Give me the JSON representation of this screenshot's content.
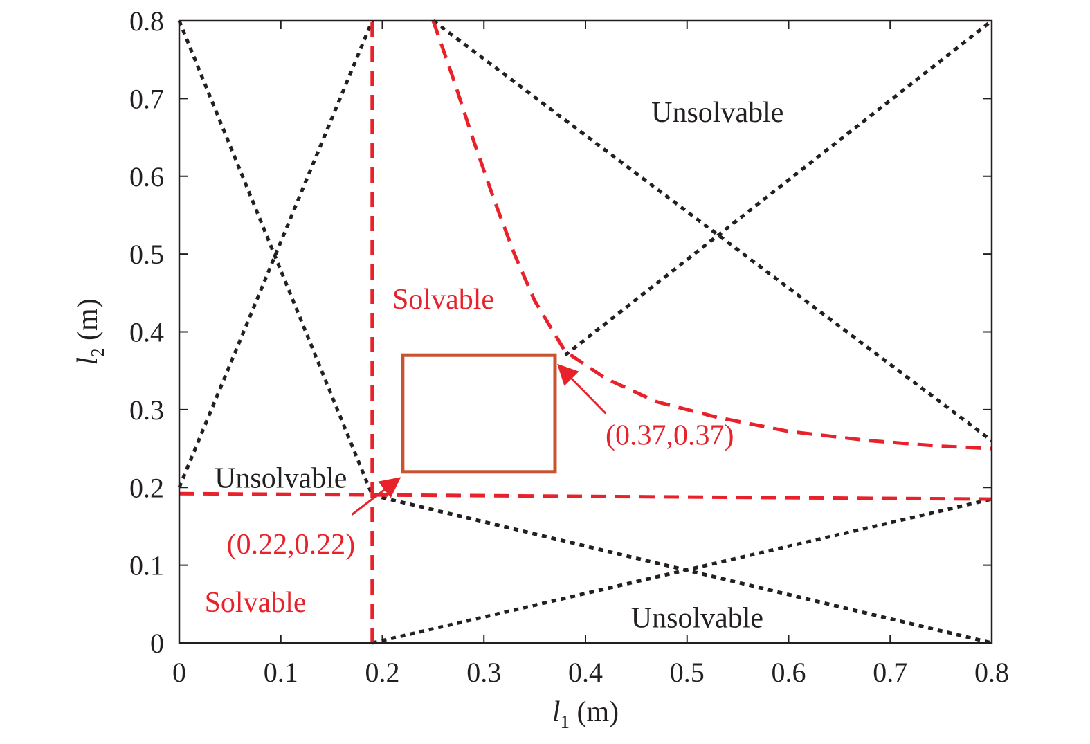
{
  "chart_data": {
    "type": "line",
    "title": "",
    "xlabel": {
      "var": "l",
      "sub": "1",
      "unit": " (m)"
    },
    "ylabel": {
      "var": "l",
      "sub": "2",
      "unit": " (m)"
    },
    "xlim": [
      0,
      0.8
    ],
    "ylim": [
      0,
      0.8
    ],
    "xticks": [
      0,
      0.1,
      0.2,
      0.3,
      0.4,
      0.5,
      0.6,
      0.7,
      0.8
    ],
    "yticks": [
      0,
      0.1,
      0.2,
      0.3,
      0.4,
      0.5,
      0.6,
      0.7,
      0.8
    ],
    "xtick_labels": [
      "0",
      "0.1",
      "0.2",
      "0.3",
      "0.4",
      "0.5",
      "0.6",
      "0.7",
      "0.8"
    ],
    "ytick_labels": [
      "0",
      "0.1",
      "0.2",
      "0.3",
      "0.4",
      "0.5",
      "0.6",
      "0.7",
      "0.8"
    ],
    "grid": false,
    "colors": {
      "boundary": "#e8222b",
      "limit": "#231f20",
      "box": "#c8532f",
      "text": "#231f20",
      "annotation": "#e8222b"
    },
    "series": [
      {
        "style": "dotted",
        "color": "#231f20",
        "x": [
          0,
          0.19
        ],
        "y": [
          0.8,
          0.19
        ]
      },
      {
        "style": "dotted",
        "color": "#231f20",
        "x": [
          0,
          0.19
        ],
        "y": [
          0.2,
          0.8
        ]
      },
      {
        "style": "dotted",
        "color": "#231f20",
        "x": [
          0.25,
          0.8
        ],
        "y": [
          0.8,
          0.26
        ]
      },
      {
        "style": "dotted",
        "color": "#231f20",
        "x": [
          0.38,
          0.8
        ],
        "y": [
          0.37,
          0.8
        ]
      },
      {
        "style": "dotted",
        "color": "#231f20",
        "x": [
          0.19,
          0.8
        ],
        "y": [
          0.19,
          0.0
        ]
      },
      {
        "style": "dotted",
        "color": "#231f20",
        "x": [
          0.19,
          0.8
        ],
        "y": [
          0.0,
          0.185
        ]
      },
      {
        "style": "dashed",
        "color": "#e8222b",
        "x": [
          0.19,
          0.19
        ],
        "y": [
          0,
          0.8
        ]
      },
      {
        "style": "dashed",
        "color": "#e8222b",
        "x": [
          0,
          0.8
        ],
        "y": [
          0.192,
          0.185
        ]
      },
      {
        "style": "dashed",
        "color": "#e8222b",
        "x": [
          0.25,
          0.27,
          0.29,
          0.31,
          0.33,
          0.35,
          0.38,
          0.42,
          0.47,
          0.53,
          0.6,
          0.68,
          0.75,
          0.8
        ],
        "y": [
          0.8,
          0.725,
          0.645,
          0.57,
          0.5,
          0.44,
          0.375,
          0.34,
          0.31,
          0.29,
          0.272,
          0.26,
          0.253,
          0.25
        ]
      }
    ],
    "rectangle": {
      "x": [
        0.22,
        0.37
      ],
      "y": [
        0.22,
        0.37
      ],
      "color": "#c8532f"
    },
    "annotations": [
      {
        "text": "Unsolvable",
        "x": 0.53,
        "y": 0.67,
        "color": "#231f20"
      },
      {
        "text": "Solvable",
        "x": 0.26,
        "y": 0.43,
        "color": "#e8222b"
      },
      {
        "text": "Unsolvable",
        "x": 0.1,
        "y": 0.2,
        "color": "#231f20"
      },
      {
        "text": "Solvable",
        "x": 0.075,
        "y": 0.04,
        "color": "#e8222b"
      },
      {
        "text": "Unsolvable",
        "x": 0.51,
        "y": 0.02,
        "color": "#231f20"
      },
      {
        "text": "(0.37,0.37)",
        "x": 0.483,
        "y": 0.255,
        "color": "#e8222b",
        "arrow_from": [
          0.42,
          0.295
        ],
        "arrow_to": [
          0.375,
          0.355
        ]
      },
      {
        "text": "(0.22,0.22)",
        "x": 0.11,
        "y": 0.115,
        "color": "#e8222b",
        "arrow_from": [
          0.17,
          0.165
        ],
        "arrow_to": [
          0.215,
          0.21
        ]
      }
    ]
  }
}
